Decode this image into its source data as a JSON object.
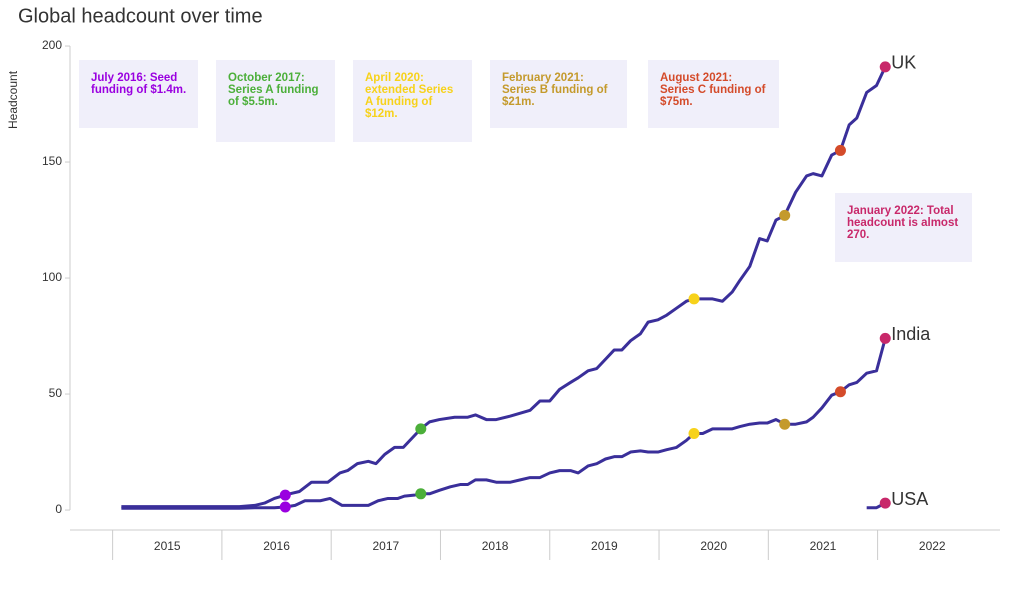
{
  "chart_data": {
    "type": "line",
    "subtitle": "Global headcount over time",
    "y_label": "Headcount",
    "xlim": [
      2014.61,
      2023.12
    ],
    "ylim": [
      -8.6,
      202.6
    ],
    "yticks": [
      0,
      50,
      100,
      150,
      200
    ],
    "xticks": [
      {
        "value": 2015.5,
        "label": "2015"
      },
      {
        "value": 2016.5,
        "label": "2016"
      },
      {
        "value": 2017.5,
        "label": "2017"
      },
      {
        "value": 2018.5,
        "label": "2018"
      },
      {
        "value": 2019.5,
        "label": "2019"
      },
      {
        "value": 2020.5,
        "label": "2020"
      },
      {
        "value": 2021.5,
        "label": "2021"
      },
      {
        "value": 2022.5,
        "label": "2022"
      }
    ],
    "series": [
      {
        "name": "UK",
        "color": "#3a2f9a",
        "x": [
          2015.08,
          2016.16,
          2016.3,
          2016.39,
          2016.48,
          2016.62,
          2016.71,
          2016.82,
          2016.97,
          2017.08,
          2017.15,
          2017.24,
          2017.34,
          2017.41,
          2017.49,
          2017.58,
          2017.66,
          2017.74,
          2017.82,
          2017.9,
          2017.99,
          2018.13,
          2018.25,
          2018.32,
          2018.42,
          2018.51,
          2018.64,
          2018.82,
          2018.91,
          2019.0,
          2019.09,
          2019.19,
          2019.26,
          2019.35,
          2019.43,
          2019.51,
          2019.59,
          2019.66,
          2019.74,
          2019.83,
          2019.9,
          2019.99,
          2020.07,
          2020.16,
          2020.25,
          2020.32,
          2020.4,
          2020.49,
          2020.58,
          2020.67,
          2020.74,
          2020.83,
          2020.92,
          2020.99,
          2021.07,
          2021.15,
          2021.25,
          2021.35,
          2021.41,
          2021.49,
          2021.58,
          2021.66,
          2021.74,
          2021.81,
          2021.9,
          2021.99,
          2022.07
        ],
        "values": [
          1.5,
          1.5,
          2,
          3,
          5,
          7,
          8,
          12,
          12,
          16,
          17,
          20,
          21,
          20,
          24,
          27,
          27,
          31,
          35,
          38,
          39,
          40,
          40,
          41,
          39,
          39,
          40.5,
          43,
          47,
          47,
          52,
          55,
          57,
          60,
          61,
          65,
          69,
          69,
          73,
          76,
          81,
          82,
          84,
          87,
          90,
          91,
          91,
          91,
          90,
          94,
          99,
          105,
          117,
          116,
          125,
          127,
          137,
          144,
          145,
          144,
          153,
          155,
          166,
          169,
          180,
          183,
          191
        ]
      },
      {
        "name": "India",
        "color": "#3a2f9a",
        "x": [
          2015.08,
          2016.16,
          2016.3,
          2016.48,
          2016.58,
          2016.67,
          2016.76,
          2016.9,
          2016.99,
          2017.1,
          2017.22,
          2017.34,
          2017.43,
          2017.52,
          2017.61,
          2017.67,
          2017.77,
          2017.82,
          2017.9,
          2017.99,
          2018.09,
          2018.18,
          2018.25,
          2018.32,
          2018.42,
          2018.51,
          2018.64,
          2018.73,
          2018.82,
          2018.91,
          2019.0,
          2019.09,
          2019.19,
          2019.26,
          2019.35,
          2019.43,
          2019.51,
          2019.59,
          2019.66,
          2019.74,
          2019.83,
          2019.9,
          2019.99,
          2020.07,
          2020.16,
          2020.25,
          2020.32,
          2020.4,
          2020.49,
          2020.58,
          2020.67,
          2020.74,
          2020.83,
          2020.92,
          2020.99,
          2021.07,
          2021.15,
          2021.25,
          2021.35,
          2021.41,
          2021.49,
          2021.58,
          2021.66,
          2021.74,
          2021.81,
          2021.9,
          2021.99,
          2022.07
        ],
        "values": [
          0.8,
          0.8,
          1,
          1,
          1.3,
          2,
          4,
          4,
          5,
          2,
          2,
          2,
          4,
          5,
          5,
          6,
          6.5,
          7,
          7,
          8.5,
          10,
          11,
          11,
          13,
          13,
          12,
          12,
          13,
          14,
          14,
          16,
          17,
          17,
          16,
          19,
          20,
          22,
          23,
          23,
          25,
          25.5,
          25,
          25,
          26,
          27,
          30,
          33,
          33,
          35,
          35,
          35,
          36,
          37,
          37.5,
          37.5,
          39,
          37,
          37,
          38,
          40,
          44,
          49.5,
          51,
          54,
          55,
          59,
          60,
          74
        ]
      },
      {
        "name": "USA",
        "color": "#3a2f9a",
        "x": [
          2021.9,
          2021.99,
          2022.07
        ],
        "values": [
          1,
          1,
          3
        ]
      }
    ],
    "annotations": [
      {
        "text": "July 2016: Seed funding of $1.4m.",
        "x": 2016.58,
        "color": "#9a00e0"
      },
      {
        "text": "October 2017: Series A funding of $5.5m.",
        "x": 2017.82,
        "color": "#4caf3a"
      },
      {
        "text": "April 2020: extended Series A funding of $12m.",
        "x": 2020.32,
        "color": "#f7d21a"
      },
      {
        "text": "February 2021: Series B funding of $21m.",
        "x": 2021.15,
        "color": "#c49a2c"
      },
      {
        "text": "August 2021: Series C funding of $75m.",
        "x": 2021.66,
        "color": "#d44b2a"
      },
      {
        "text": "January 2022: Total headcount is almost 270.",
        "x": 2022.07,
        "color": "#c8286a"
      }
    ]
  }
}
